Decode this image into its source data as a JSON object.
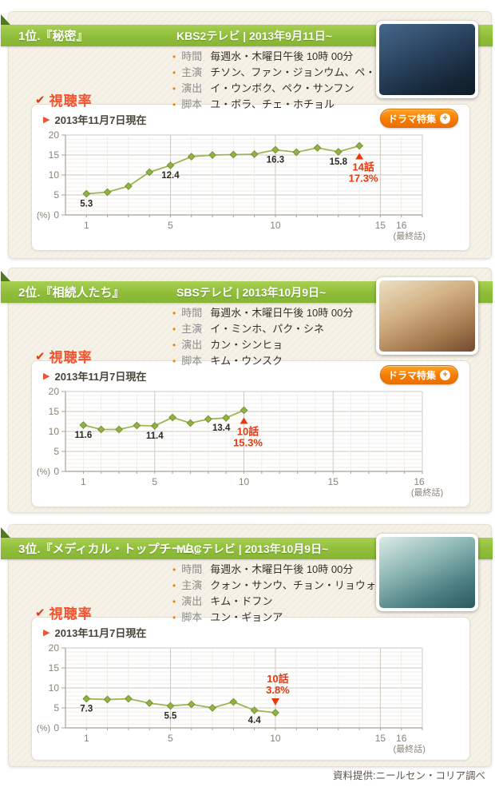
{
  "icons": {
    "check": "✔",
    "date_arrow": "▶",
    "bullet": "•",
    "plus": "+"
  },
  "colors": {
    "ribbon_green": "#8fbe3a",
    "fold_green": "#50791e",
    "accent_orange": "#f08300",
    "button_orange": "#f57d00",
    "accent_red": "#e8380d",
    "ratings_red": "#f4512c",
    "line_green": "#9cb653",
    "marker_green": "#93b148"
  },
  "footer": {
    "source_note": "資料提供:ニールセン・コリア調べ"
  },
  "sections": [
    {
      "rank_title": "1位.『秘密』",
      "broadcast": "KBS2テレビ | 2013年9月11日~",
      "info": [
        {
          "label": "時間",
          "value": "毎週水・木曜日午後 10時 00分"
        },
        {
          "label": "主演",
          "value": "チソン、ファン・ジョンウム、ペ・スビン、イ・ダヒ"
        },
        {
          "label": "演出",
          "value": "イ・ウンボク、ペク・サンフン"
        },
        {
          "label": "脚本",
          "value": "ユ・ボラ、チェ・ホチョル"
        }
      ],
      "ratings_label": "視聴率",
      "as_of": "2013年11月7日現在",
      "feature_button": "ドラマ特集",
      "poster": "秘密 ポスター"
    },
    {
      "rank_title": "2位.『相続人たち』",
      "broadcast": "SBSテレビ | 2013年10月9日~",
      "info": [
        {
          "label": "時間",
          "value": "毎週水・木曜日午後 10時 00分"
        },
        {
          "label": "主演",
          "value": "イ・ミンホ、パク・シネ"
        },
        {
          "label": "演出",
          "value": "カン・シンヒョ"
        },
        {
          "label": "脚本",
          "value": "キム・ウンスク"
        }
      ],
      "ratings_label": "視聴率",
      "as_of": "2013年11月7日現在",
      "feature_button": "ドラマ特集",
      "poster": "相続人たち ポスター"
    },
    {
      "rank_title": "3位.『メディカル・トップチーム』",
      "broadcast": "MBCテレビ | 2013年10月9日~",
      "info": [
        {
          "label": "時間",
          "value": "毎週水・木曜日午後 10時 00分"
        },
        {
          "label": "主演",
          "value": "クォン・サンウ、チョン・リョウォン、チュ・ジフン"
        },
        {
          "label": "演出",
          "value": "キム・ドフン"
        },
        {
          "label": "脚本",
          "value": "ユン・ギョンア"
        }
      ],
      "ratings_label": "視聴率",
      "as_of": "2013年11月7日現在",
      "feature_button": null,
      "poster": "メディカル・トップチーム ポスター"
    }
  ],
  "chart_data": [
    {
      "type": "line",
      "series_name": "秘密 視聴率",
      "x": [
        1,
        2,
        3,
        4,
        5,
        6,
        7,
        8,
        9,
        10,
        11,
        12,
        13,
        14
      ],
      "values": [
        5.3,
        5.7,
        7.2,
        10.7,
        12.4,
        14.6,
        15.0,
        15.1,
        15.2,
        16.3,
        15.7,
        16.8,
        15.8,
        17.3
      ],
      "ylabel": "(%)",
      "ylim": [
        0,
        20
      ],
      "yticks": [
        0,
        5,
        10,
        15,
        20
      ],
      "xticks": [
        {
          "slot": 1,
          "label": "1"
        },
        {
          "slot": 5,
          "label": "5"
        },
        {
          "slot": 10,
          "label": "10"
        },
        {
          "slot": 15,
          "label": "15"
        },
        {
          "slot": 16,
          "label": "16"
        }
      ],
      "x_axis_note": "(最終話)",
      "axis_slots": 17,
      "grid": true,
      "point_labels": [
        {
          "x": 1,
          "text": "5.3"
        },
        {
          "x": 5,
          "text": "12.4"
        },
        {
          "x": 10,
          "text": "16.3"
        },
        {
          "x": 13,
          "text": "15.8"
        }
      ],
      "highlight": {
        "x": 14,
        "lines": [
          "14話",
          "17.3%"
        ],
        "position": "below"
      }
    },
    {
      "type": "line",
      "series_name": "相続人たち 視聴率",
      "x": [
        1,
        2,
        3,
        4,
        5,
        6,
        7,
        8,
        9,
        10
      ],
      "values": [
        11.6,
        10.5,
        10.5,
        11.5,
        11.4,
        13.5,
        12.1,
        13.1,
        13.4,
        15.3
      ],
      "ylabel": "(%)",
      "ylim": [
        0,
        20
      ],
      "yticks": [
        0,
        5,
        10,
        15,
        20
      ],
      "xticks": [
        {
          "slot": 1,
          "label": "1"
        },
        {
          "slot": 5,
          "label": "5"
        },
        {
          "slot": 10,
          "label": "10"
        },
        {
          "slot": 15,
          "label": "15"
        },
        {
          "slot": 20,
          "label": "16"
        }
      ],
      "x_axis_note": "(最終話)",
      "axis_slots": 20,
      "grid": true,
      "point_labels": [
        {
          "x": 1,
          "text": "11.6"
        },
        {
          "x": 5,
          "text": "11.4"
        },
        {
          "x": 9,
          "text": "13.4",
          "dx": -6
        }
      ],
      "highlight": {
        "x": 10,
        "lines": [
          "10話",
          "15.3%"
        ],
        "position": "below"
      }
    },
    {
      "type": "line",
      "series_name": "メディカル・トップチーム 視聴率",
      "x": [
        1,
        2,
        3,
        4,
        5,
        6,
        7,
        8,
        9,
        10
      ],
      "values": [
        7.3,
        7.1,
        7.3,
        6.2,
        5.5,
        5.9,
        5.0,
        6.5,
        4.4,
        3.8
      ],
      "ylabel": "(%)",
      "ylim": [
        0,
        20
      ],
      "yticks": [
        0,
        5,
        10,
        15,
        20
      ],
      "xticks": [
        {
          "slot": 1,
          "label": "1"
        },
        {
          "slot": 5,
          "label": "5"
        },
        {
          "slot": 10,
          "label": "10"
        },
        {
          "slot": 15,
          "label": "15"
        },
        {
          "slot": 16,
          "label": "16"
        }
      ],
      "x_axis_note": "(最終話)",
      "axis_slots": 17,
      "grid": true,
      "point_labels": [
        {
          "x": 1,
          "text": "7.3"
        },
        {
          "x": 5,
          "text": "5.5"
        },
        {
          "x": 9,
          "text": "4.4"
        }
      ],
      "highlight": {
        "x": 10,
        "lines": [
          "10話",
          "3.8%"
        ],
        "position": "above"
      }
    }
  ]
}
